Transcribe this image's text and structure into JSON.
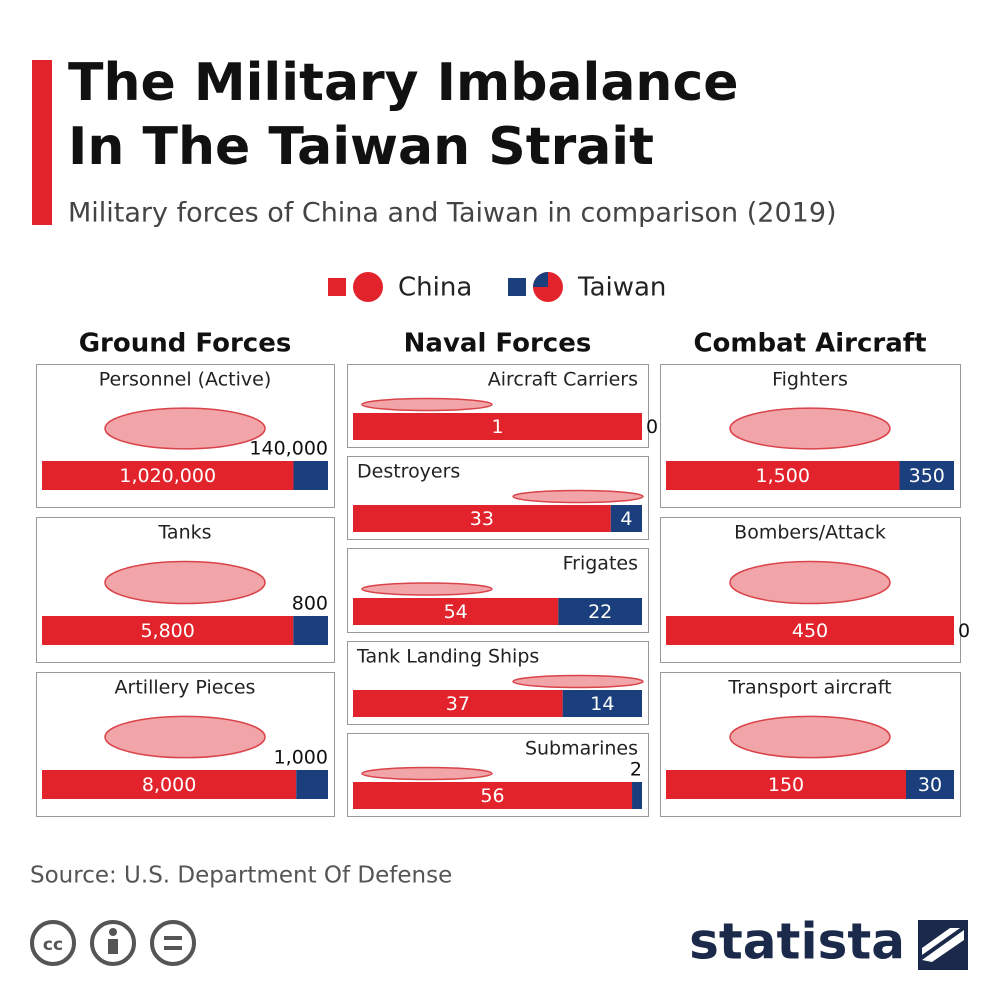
{
  "title": [
    "The Military Imbalance",
    "In The Taiwan Strait"
  ],
  "subtitle": "Military forces of China and Taiwan in comparison (2019)",
  "legend": [
    {
      "name": "China",
      "color": "#e3232c"
    },
    {
      "name": "Taiwan",
      "color": "#1b3f7c"
    }
  ],
  "sections": [
    {
      "title": "Ground Forces",
      "charts": [
        {
          "type": "bar",
          "title": "Personnel (Active)",
          "values": [
            1020000,
            140000
          ],
          "value_labels": [
            "1,020,000",
            "140,000"
          ]
        },
        {
          "type": "bar",
          "title": "Tanks",
          "values": [
            5800,
            800
          ],
          "value_labels": [
            "5,800",
            "800"
          ]
        },
        {
          "type": "bar",
          "title": "Artillery Pieces",
          "values": [
            8000,
            1000
          ],
          "value_labels": [
            "8,000",
            "1,000"
          ]
        }
      ]
    },
    {
      "title": "Naval Forces",
      "charts": [
        {
          "type": "bar",
          "title": "Aircraft Carriers",
          "values": [
            1,
            0
          ]
        },
        {
          "type": "bar",
          "title": "Destroyers",
          "values": [
            33,
            4
          ]
        },
        {
          "type": "bar",
          "title": "Frigates",
          "values": [
            54,
            22
          ]
        },
        {
          "type": "bar",
          "title": "Tank Landing Ships",
          "values": [
            37,
            14
          ]
        },
        {
          "type": "bar",
          "title": "Submarines",
          "values": [
            56,
            2
          ]
        }
      ]
    },
    {
      "title": "Combat Aircraft",
      "charts": [
        {
          "type": "bar",
          "title": "Fighters",
          "values": [
            1500,
            350
          ],
          "value_labels": [
            "1,500",
            "350"
          ]
        },
        {
          "type": "bar",
          "title": "Bombers/Attack",
          "values": [
            450,
            0
          ]
        },
        {
          "type": "bar",
          "title": "Transport aircraft",
          "values": [
            150,
            30
          ]
        }
      ]
    }
  ],
  "source": "Source: U.S. Department Of Defense",
  "brand": "statista"
}
